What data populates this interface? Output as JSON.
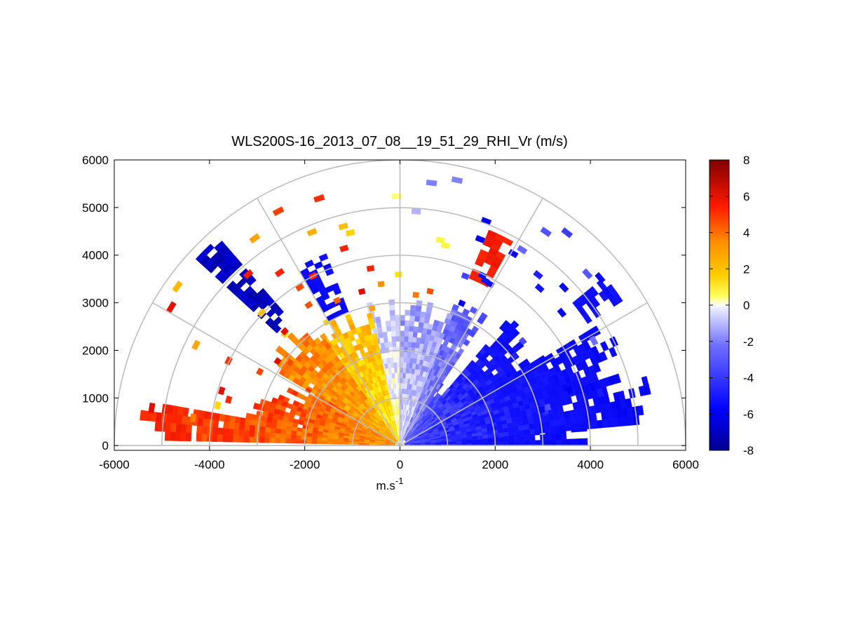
{
  "chart_data": {
    "type": "heatmap",
    "subtype": "polar-rhi-sector",
    "title": "WLS200S-16_2013_07_08__19_51_29_RHI_Vr (m/s)",
    "xlabel_base": "m.s",
    "xlabel_exp": "-1",
    "ylabel": "",
    "xlim": [
      -6000,
      6000
    ],
    "ylim": [
      -100,
      6000
    ],
    "x_ticks": [
      "-6000",
      "-4000",
      "-2000",
      "0",
      "2000",
      "4000",
      "6000"
    ],
    "y_ticks": [
      "0",
      "1000",
      "2000",
      "3000",
      "4000",
      "5000",
      "6000"
    ],
    "x_tick_values": [
      -6000,
      -4000,
      -2000,
      0,
      2000,
      4000,
      6000
    ],
    "y_tick_values": [
      0,
      1000,
      2000,
      3000,
      4000,
      5000,
      6000
    ],
    "range_rings": [
      1000,
      2000,
      3000,
      4000,
      5000,
      6000
    ],
    "spokes_deg": [
      0,
      30,
      60,
      90,
      120,
      150,
      180
    ],
    "grid": true,
    "colorbar": {
      "min": -8,
      "max": 8,
      "ticks": [
        "8",
        "6",
        "4",
        "2",
        "0",
        "-2",
        "-4",
        "-6",
        "-8"
      ],
      "tick_values": [
        8,
        6,
        4,
        2,
        0,
        -2,
        -4,
        -6,
        -8
      ],
      "colormap": [
        "#00008f",
        "#0000ff",
        "#8a8aff",
        "#ffffff",
        "#ffff00",
        "#ff8c00",
        "#ff0000",
        "#800000"
      ]
    },
    "sectors": [
      {
        "az_from": 0,
        "az_to": 5,
        "r_from": 200,
        "r_to": 4200,
        "v_near": -3.5,
        "v_far": -5.5
      },
      {
        "az_from": 5,
        "az_to": 30,
        "r_from": 100,
        "r_to": 5400,
        "v_near": -3,
        "v_far": -5.5
      },
      {
        "az_from": 30,
        "az_to": 48,
        "r_from": 150,
        "r_to": 3500,
        "v_near": -2.5,
        "v_far": -5
      },
      {
        "az_from": 48,
        "az_to": 56,
        "r_from": 150,
        "r_to": 1600,
        "v_near": -2,
        "v_far": -3
      },
      {
        "az_from": 56,
        "az_to": 68,
        "r_from": 100,
        "r_to": 3400,
        "v_near": -1.5,
        "v_far": -2.5
      },
      {
        "az_from": 68,
        "az_to": 90,
        "r_from": 100,
        "r_to": 3100,
        "v_near": -0.5,
        "v_far": -1.5
      },
      {
        "az_from": 90,
        "az_to": 102,
        "r_from": 100,
        "r_to": 3100,
        "v_near": 0.3,
        "v_far": -1
      },
      {
        "az_from": 102,
        "az_to": 125,
        "r_from": 100,
        "r_to": 3100,
        "v_near": 1,
        "v_far": 2
      },
      {
        "az_from": 125,
        "az_to": 148,
        "r_from": 100,
        "r_to": 3400,
        "v_near": 2,
        "v_far": 3
      },
      {
        "az_from": 148,
        "az_to": 157,
        "r_from": 100,
        "r_to": 2600,
        "v_near": 2.5,
        "v_far": 3.5
      },
      {
        "az_from": 157,
        "az_to": 170,
        "r_from": 100,
        "r_to": 3300,
        "v_near": 2.5,
        "v_far": 4
      },
      {
        "az_from": 170,
        "az_to": 178,
        "r_from": 100,
        "r_to": 5800,
        "v_near": 2.5,
        "v_far": 4.5
      }
    ],
    "bands": [
      {
        "az_from": 131,
        "az_to": 136,
        "r_from": 3500,
        "r_to": 5800,
        "v": -7
      },
      {
        "az_from": 111,
        "az_to": 118,
        "r_from": 3000,
        "r_to": 4300,
        "v": -5
      },
      {
        "az_from": 61,
        "az_to": 67,
        "r_from": 3800,
        "r_to": 5000,
        "v": 4.5
      },
      {
        "az_from": 33,
        "az_to": 39,
        "r_from": 4700,
        "r_to": 5500,
        "v": -4.5
      }
    ]
  }
}
